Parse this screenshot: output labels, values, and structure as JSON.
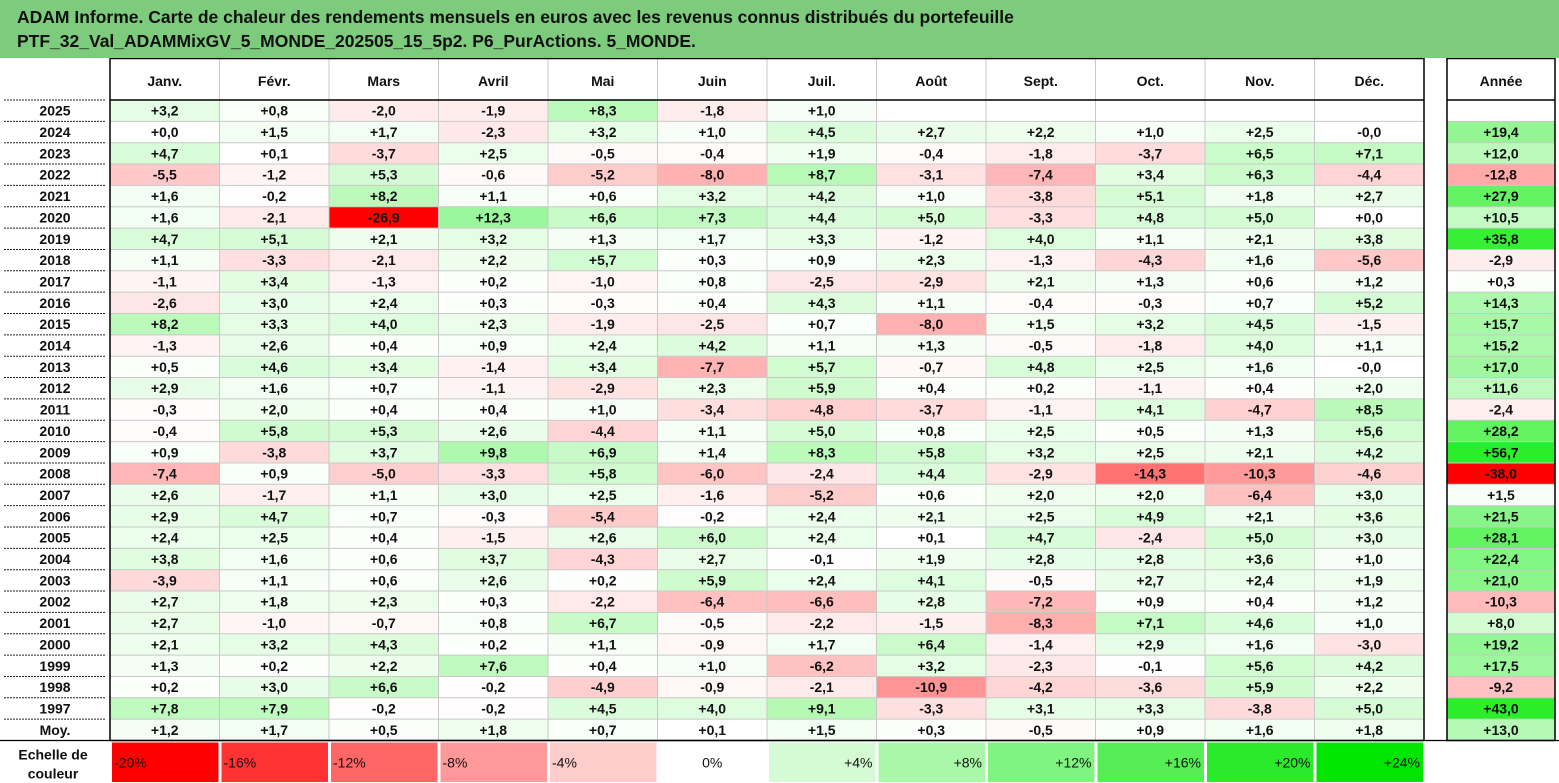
{
  "title": {
    "line1": "ADAM Informe. Carte de chaleur des rendements mensuels en euros avec les revenus connus distribués du portefeuille",
    "line2": "PTF_32_Val_ADAMMixGV_5_MONDE_202505_15_5p2. P6_PurActions. 5_MONDE."
  },
  "chart_data": {
    "type": "heatmap",
    "title": "ADAM Informe. Carte de chaleur des rendements mensuels en euros avec les revenus connus distribués du portefeuille PTF_32_Val_ADAMMixGV_5_MONDE_202505_15_5p2. P6_PurActions. 5_MONDE.",
    "columns": [
      "Janv.",
      "Févr.",
      "Mars",
      "Avril",
      "Mai",
      "Juin",
      "Juil.",
      "Août",
      "Sept.",
      "Oct.",
      "Nov.",
      "Déc."
    ],
    "annual_label": "Année",
    "rows": [
      {
        "year": "2025",
        "values": [
          "+3,2",
          "+0,8",
          "-2,0",
          "-1,9",
          "+8,3",
          "-1,8",
          "+1,0",
          "",
          "",
          "",
          "",
          ""
        ],
        "annual": ""
      },
      {
        "year": "2024",
        "values": [
          "+0,0",
          "+1,5",
          "+1,7",
          "-2,3",
          "+3,2",
          "+1,0",
          "+4,5",
          "+2,7",
          "+2,2",
          "+1,0",
          "+2,5",
          "-0,0"
        ],
        "annual": "+19,4"
      },
      {
        "year": "2023",
        "values": [
          "+4,7",
          "+0,1",
          "-3,7",
          "+2,5",
          "-0,5",
          "-0,4",
          "+1,9",
          "-0,4",
          "-1,8",
          "-3,7",
          "+6,5",
          "+7,1"
        ],
        "annual": "+12,0"
      },
      {
        "year": "2022",
        "values": [
          "-5,5",
          "-1,2",
          "+5,3",
          "-0,6",
          "-5,2",
          "-8,0",
          "+8,7",
          "-3,1",
          "-7,4",
          "+3,4",
          "+6,3",
          "-4,4"
        ],
        "annual": "-12,8"
      },
      {
        "year": "2021",
        "values": [
          "+1,6",
          "-0,2",
          "+8,2",
          "+1,1",
          "+0,6",
          "+3,2",
          "+4,2",
          "+1,0",
          "-3,8",
          "+5,1",
          "+1,8",
          "+2,7"
        ],
        "annual": "+27,9"
      },
      {
        "year": "2020",
        "values": [
          "+1,6",
          "-2,1",
          "-26,9",
          "+12,3",
          "+6,6",
          "+7,3",
          "+4,4",
          "+5,0",
          "-3,3",
          "+4,8",
          "+5,0",
          "+0,0"
        ],
        "annual": "+10,5"
      },
      {
        "year": "2019",
        "values": [
          "+4,7",
          "+5,1",
          "+2,1",
          "+3,2",
          "+1,3",
          "+1,7",
          "+3,3",
          "-1,2",
          "+4,0",
          "+1,1",
          "+2,1",
          "+3,8"
        ],
        "annual": "+35,8"
      },
      {
        "year": "2018",
        "values": [
          "+1,1",
          "-3,3",
          "-2,1",
          "+2,2",
          "+5,7",
          "+0,3",
          "+0,9",
          "+2,3",
          "-1,3",
          "-4,3",
          "+1,6",
          "-5,6"
        ],
        "annual": "-2,9"
      },
      {
        "year": "2017",
        "values": [
          "-1,1",
          "+3,4",
          "-1,3",
          "+0,2",
          "-1,0",
          "+0,8",
          "-2,5",
          "-2,9",
          "+2,1",
          "+1,3",
          "+0,6",
          "+1,2"
        ],
        "annual": "+0,3"
      },
      {
        "year": "2016",
        "values": [
          "-2,6",
          "+3,0",
          "+2,4",
          "+0,3",
          "-0,3",
          "+0,4",
          "+4,3",
          "+1,1",
          "-0,4",
          "-0,3",
          "+0,7",
          "+5,2"
        ],
        "annual": "+14,3"
      },
      {
        "year": "2015",
        "values": [
          "+8,2",
          "+3,3",
          "+4,0",
          "+2,3",
          "-1,9",
          "-2,5",
          "+0,7",
          "-8,0",
          "+1,5",
          "+3,2",
          "+4,5",
          "-1,5"
        ],
        "annual": "+15,7"
      },
      {
        "year": "2014",
        "values": [
          "-1,3",
          "+2,6",
          "+0,4",
          "+0,9",
          "+2,4",
          "+4,2",
          "+1,1",
          "+1,3",
          "-0,5",
          "-1,8",
          "+4,0",
          "+1,1"
        ],
        "annual": "+15,2"
      },
      {
        "year": "2013",
        "values": [
          "+0,5",
          "+4,6",
          "+3,4",
          "-1,4",
          "+3,4",
          "-7,7",
          "+5,7",
          "-0,7",
          "+4,8",
          "+2,5",
          "+1,6",
          "-0,0"
        ],
        "annual": "+17,0"
      },
      {
        "year": "2012",
        "values": [
          "+2,9",
          "+1,6",
          "+0,7",
          "-1,1",
          "-2,9",
          "+2,3",
          "+5,9",
          "+0,4",
          "+0,2",
          "-1,1",
          "+0,4",
          "+2,0"
        ],
        "annual": "+11,6"
      },
      {
        "year": "2011",
        "values": [
          "-0,3",
          "+2,0",
          "+0,4",
          "+0,4",
          "+1,0",
          "-3,4",
          "-4,8",
          "-3,7",
          "-1,1",
          "+4,1",
          "-4,7",
          "+8,5"
        ],
        "annual": "-2,4"
      },
      {
        "year": "2010",
        "values": [
          "-0,4",
          "+5,8",
          "+5,3",
          "+2,6",
          "-4,4",
          "+1,1",
          "+5,0",
          "+0,8",
          "+2,5",
          "+0,5",
          "+1,3",
          "+5,6"
        ],
        "annual": "+28,2"
      },
      {
        "year": "2009",
        "values": [
          "+0,9",
          "-3,8",
          "+3,7",
          "+9,8",
          "+6,9",
          "+1,4",
          "+8,3",
          "+5,8",
          "+3,2",
          "+2,5",
          "+2,1",
          "+4,2"
        ],
        "annual": "+56,7"
      },
      {
        "year": "2008",
        "values": [
          "-7,4",
          "+0,9",
          "-5,0",
          "-3,3",
          "+5,8",
          "-6,0",
          "-2,4",
          "+4,4",
          "-2,9",
          "-14,3",
          "-10,3",
          "-4,6"
        ],
        "annual": "-38,0"
      },
      {
        "year": "2007",
        "values": [
          "+2,6",
          "-1,7",
          "+1,1",
          "+3,0",
          "+2,5",
          "-1,6",
          "-5,2",
          "+0,6",
          "+2,0",
          "+2,0",
          "-6,4",
          "+3,0"
        ],
        "annual": "+1,5"
      },
      {
        "year": "2006",
        "values": [
          "+2,9",
          "+4,7",
          "+0,7",
          "-0,3",
          "-5,4",
          "-0,2",
          "+2,4",
          "+2,1",
          "+2,5",
          "+4,9",
          "+2,1",
          "+3,6"
        ],
        "annual": "+21,5"
      },
      {
        "year": "2005",
        "values": [
          "+2,4",
          "+2,5",
          "+0,4",
          "-1,5",
          "+2,6",
          "+6,0",
          "+2,4",
          "+0,1",
          "+4,7",
          "-2,4",
          "+5,0",
          "+3,0"
        ],
        "annual": "+28,1"
      },
      {
        "year": "2004",
        "values": [
          "+3,8",
          "+1,6",
          "+0,6",
          "+3,7",
          "-4,3",
          "+2,7",
          "-0,1",
          "+1,9",
          "+2,8",
          "+2,8",
          "+3,6",
          "+1,0"
        ],
        "annual": "+22,4"
      },
      {
        "year": "2003",
        "values": [
          "-3,9",
          "+1,1",
          "+0,6",
          "+2,6",
          "+0,2",
          "+5,9",
          "+2,4",
          "+4,1",
          "-0,5",
          "+2,7",
          "+2,4",
          "+1,9"
        ],
        "annual": "+21,0"
      },
      {
        "year": "2002",
        "values": [
          "+2,7",
          "+1,8",
          "+2,3",
          "+0,3",
          "-2,2",
          "-6,4",
          "-6,6",
          "+2,8",
          "-7,2",
          "+0,9",
          "+0,4",
          "+1,2"
        ],
        "annual": "-10,3"
      },
      {
        "year": "2001",
        "values": [
          "+2,7",
          "-1,0",
          "-0,7",
          "+0,8",
          "+6,7",
          "-0,5",
          "-2,2",
          "-1,5",
          "-8,3",
          "+7,1",
          "+4,6",
          "+1,0"
        ],
        "annual": "+8,0"
      },
      {
        "year": "2000",
        "values": [
          "+2,1",
          "+3,2",
          "+4,3",
          "+0,2",
          "+1,1",
          "-0,9",
          "+1,7",
          "+6,4",
          "-1,4",
          "+2,9",
          "+1,6",
          "-3,0"
        ],
        "annual": "+19,2"
      },
      {
        "year": "1999",
        "values": [
          "+1,3",
          "+0,2",
          "+2,2",
          "+7,6",
          "+0,4",
          "+1,0",
          "-6,2",
          "+3,2",
          "-2,3",
          "-0,1",
          "+5,6",
          "+4,2"
        ],
        "annual": "+17,5"
      },
      {
        "year": "1998",
        "values": [
          "+0,2",
          "+3,0",
          "+6,6",
          "-0,2",
          "-4,9",
          "-0,9",
          "-2,1",
          "-10,9",
          "-4,2",
          "-3,6",
          "+5,9",
          "+2,2"
        ],
        "annual": "-9,2"
      },
      {
        "year": "1997",
        "values": [
          "+7,8",
          "+7,9",
          "-0,2",
          "-0,2",
          "+4,5",
          "+4,0",
          "+9,1",
          "-3,3",
          "+3,1",
          "+3,3",
          "-3,8",
          "+5,0"
        ],
        "annual": "+43,0"
      }
    ],
    "average": {
      "label": "Moy.",
      "values": [
        "+1,2",
        "+1,7",
        "+0,5",
        "+1,8",
        "+0,7",
        "+0,1",
        "+1,5",
        "+0,3",
        "-0,5",
        "+0,9",
        "+1,6",
        "+1,8"
      ],
      "annual": "+13,0"
    },
    "color_scale": {
      "label_line1": "Echelle de",
      "label_line2": "couleur",
      "stops": [
        "-20%",
        "-16%",
        "-12%",
        "-8%",
        "-4%",
        "0%",
        "+4%",
        "+8%",
        "+12%",
        "+16%",
        "+20%",
        "+24%"
      ]
    },
    "colors": {
      "negative": "#ff0000",
      "neutral": "#ffffff",
      "positive": "#00ee00",
      "header_bg": "#7dcb7d"
    }
  }
}
